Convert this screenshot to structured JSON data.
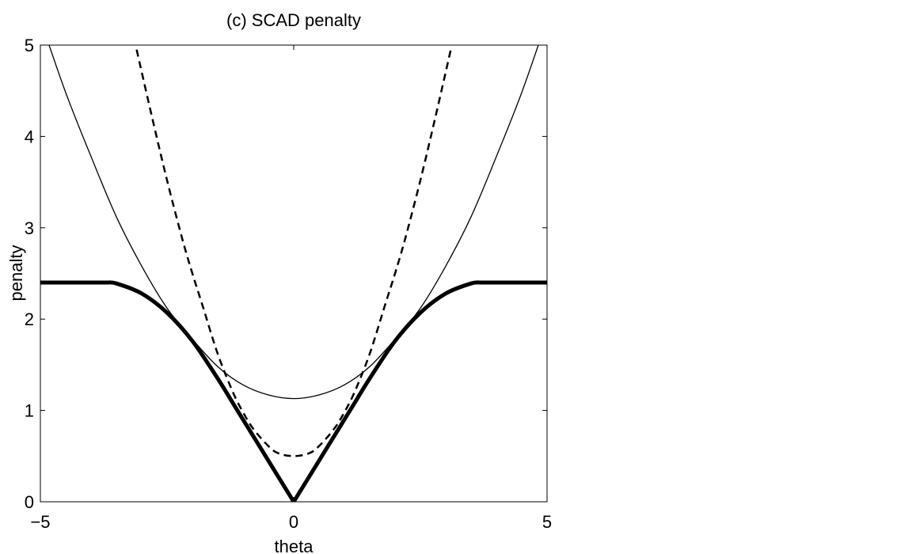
{
  "chart_data": {
    "type": "line",
    "title": "(c) SCAD penalty",
    "xlabel": "theta",
    "ylabel": "penalty",
    "xlim": [
      -5,
      5
    ],
    "ylim": [
      0,
      5
    ],
    "xticks": [
      -5,
      0,
      5
    ],
    "xtick_labels": [
      "−5",
      "0",
      "5"
    ],
    "yticks": [
      0,
      1,
      2,
      3,
      4,
      5
    ],
    "ytick_labels": [
      "0",
      "1",
      "2",
      "3",
      "4",
      "5"
    ],
    "grid": false,
    "box": true,
    "series": [
      {
        "style": "thick-solid",
        "color": "#000000",
        "x": [
          -5,
          -4.5,
          -4,
          -3.7,
          -3.5,
          -3,
          -2.5,
          -2,
          -1.5,
          -1.2,
          -1,
          -0.5,
          0,
          0.5,
          1,
          1.2,
          1.5,
          2,
          2.5,
          3,
          3.5,
          3.7,
          4,
          4.5,
          5
        ],
        "y": [
          2.4,
          2.4,
          2.4,
          2.4,
          2.39,
          2.28,
          2.07,
          1.76,
          1.35,
          1.08,
          0.9,
          0.45,
          0.0,
          0.45,
          0.9,
          1.08,
          1.35,
          1.76,
          2.07,
          2.28,
          2.39,
          2.4,
          2.4,
          2.4,
          2.4
        ]
      },
      {
        "style": "thin-solid",
        "color": "#000000",
        "x": [
          -5,
          -4.5,
          -4,
          -3.5,
          -3,
          -2.5,
          -2,
          -1.5,
          -1,
          -0.5,
          0,
          0.5,
          1,
          1.5,
          2,
          2.5,
          3,
          3.5,
          4,
          4.5,
          5
        ],
        "y": [
          5.28,
          4.48,
          3.78,
          3.12,
          2.58,
          2.12,
          1.78,
          1.48,
          1.28,
          1.17,
          1.13,
          1.17,
          1.28,
          1.48,
          1.78,
          2.12,
          2.58,
          3.12,
          3.78,
          4.48,
          5.28
        ]
      },
      {
        "style": "dashed",
        "color": "#000000",
        "x": [
          -3.1,
          -2.8,
          -2.5,
          -2.2,
          -2,
          -1.8,
          -1.5,
          -1.2,
          -1,
          -0.8,
          -0.5,
          -0.3,
          0,
          0.3,
          0.5,
          0.8,
          1,
          1.2,
          1.5,
          1.8,
          2,
          2.2,
          2.5,
          2.8,
          3.1
        ],
        "y": [
          4.95,
          4.22,
          3.52,
          2.88,
          2.5,
          2.15,
          1.62,
          1.2,
          0.98,
          0.8,
          0.61,
          0.53,
          0.5,
          0.53,
          0.61,
          0.8,
          0.98,
          1.2,
          1.62,
          2.15,
          2.5,
          2.88,
          3.52,
          4.22,
          4.95
        ]
      }
    ]
  }
}
